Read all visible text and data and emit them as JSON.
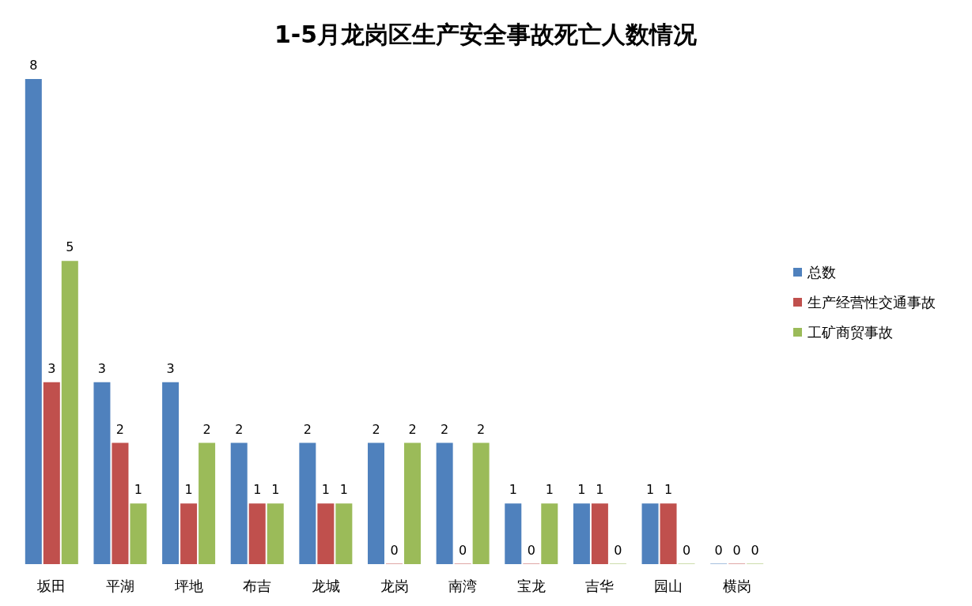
{
  "chart_data": {
    "type": "bar",
    "title": "1-5月龙岗区生产安全事故死亡人数情况",
    "categories": [
      "坂田",
      "平湖",
      "坪地",
      "布吉",
      "龙城",
      "龙岗",
      "南湾",
      "宝龙",
      "吉华",
      "园山",
      "横岗"
    ],
    "series": [
      {
        "name": "总数",
        "color": "#4f81bd",
        "values": [
          8,
          3,
          3,
          2,
          2,
          2,
          2,
          1,
          1,
          1,
          0
        ]
      },
      {
        "name": "生产经营性交通事故",
        "color": "#c0504d",
        "values": [
          3,
          2,
          1,
          1,
          1,
          0,
          0,
          0,
          1,
          1,
          0
        ]
      },
      {
        "name": "工矿商贸事故",
        "color": "#9bbb59",
        "values": [
          5,
          1,
          2,
          1,
          1,
          2,
          2,
          1,
          0,
          0,
          0
        ]
      }
    ],
    "data_labels": true,
    "legend": "right",
    "grid": false
  }
}
